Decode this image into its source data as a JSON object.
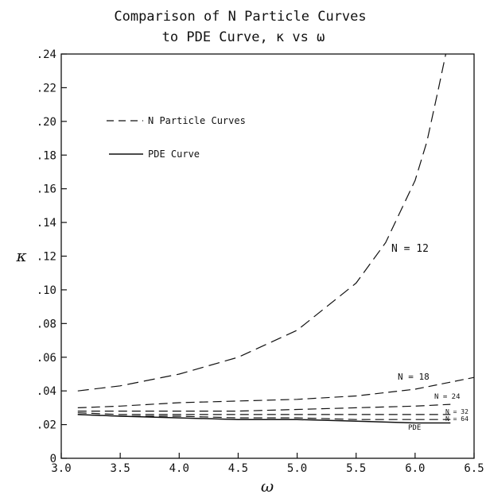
{
  "chart_data": {
    "type": "line",
    "title": [
      "Comparison of N Particle Curves",
      "to PDE Curve, κ vs ω"
    ],
    "xlabel": "ω",
    "ylabel": "κ",
    "xlim": [
      3.0,
      6.5
    ],
    "ylim": [
      0,
      0.24
    ],
    "x_ticks": [
      3.0,
      3.5,
      4.0,
      4.5,
      5.0,
      5.5,
      6.0,
      6.5
    ],
    "x_tick_labels": [
      "3.0",
      "3.5",
      "4.0",
      "4.5",
      "5.0",
      "5.5",
      "6.0",
      "6.5"
    ],
    "y_ticks": [
      0,
      0.02,
      0.04,
      0.06,
      0.08,
      0.1,
      0.12,
      0.14,
      0.16,
      0.18,
      0.2,
      0.22,
      0.24
    ],
    "y_tick_labels": [
      "0",
      ".02",
      ".04",
      ".06",
      ".08",
      ".10",
      ".12",
      ".14",
      ".16",
      ".18",
      ".20",
      ".22",
      ".24"
    ],
    "grid": false,
    "legend": {
      "position": "top-left",
      "entries": [
        {
          "label": "N Particle Curves",
          "style": "dashed"
        },
        {
          "label": "PDE Curve",
          "style": "solid"
        }
      ]
    },
    "series": [
      {
        "label": "N = 12",
        "style": "dashed",
        "x": [
          3.14,
          3.5,
          4.0,
          4.5,
          5.0,
          5.5,
          5.75,
          6.0,
          6.1,
          6.2,
          6.26
        ],
        "y": [
          0.04,
          0.043,
          0.05,
          0.06,
          0.076,
          0.104,
          0.128,
          0.165,
          0.188,
          0.22,
          0.24
        ]
      },
      {
        "label": "N = 18",
        "style": "dashed",
        "x": [
          3.14,
          3.5,
          4.0,
          4.5,
          5.0,
          5.5,
          6.0,
          6.5
        ],
        "y": [
          0.03,
          0.031,
          0.033,
          0.034,
          0.035,
          0.037,
          0.041,
          0.048
        ]
      },
      {
        "label": "N = 24",
        "style": "dashed",
        "x": [
          3.14,
          3.5,
          4.0,
          4.5,
          5.0,
          5.5,
          6.0,
          6.3
        ],
        "y": [
          0.028,
          0.028,
          0.028,
          0.028,
          0.029,
          0.03,
          0.031,
          0.032
        ]
      },
      {
        "label": "N = 32",
        "style": "dashed",
        "x": [
          3.14,
          3.5,
          4.0,
          4.5,
          5.0,
          5.5,
          6.0,
          6.3
        ],
        "y": [
          0.027,
          0.026,
          0.026,
          0.026,
          0.026,
          0.026,
          0.026,
          0.026
        ]
      },
      {
        "label": "N = 64",
        "style": "dashed",
        "x": [
          3.14,
          3.5,
          4.0,
          4.5,
          5.0,
          5.5,
          6.0,
          6.3
        ],
        "y": [
          0.026,
          0.025,
          0.025,
          0.024,
          0.024,
          0.023,
          0.023,
          0.023
        ]
      },
      {
        "label": "PDE",
        "style": "solid",
        "x": [
          3.14,
          3.5,
          4.0,
          4.5,
          5.0,
          5.5,
          6.0,
          6.3
        ],
        "y": [
          0.026,
          0.025,
          0.024,
          0.023,
          0.023,
          0.022,
          0.021,
          0.021
        ]
      }
    ]
  }
}
